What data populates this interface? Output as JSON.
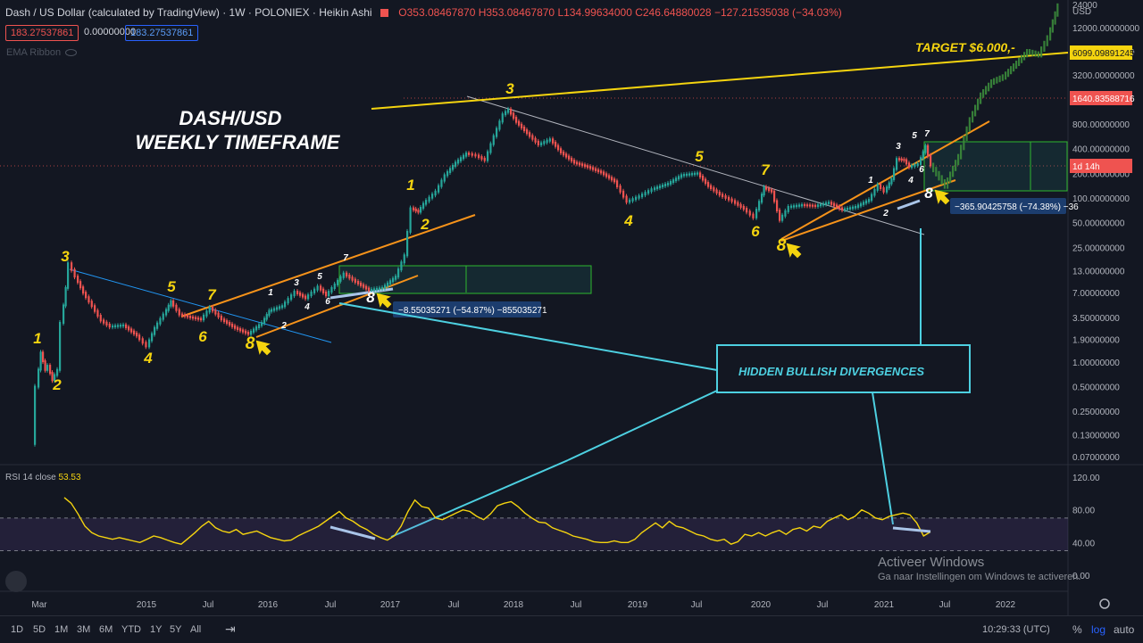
{
  "header": {
    "symbol": "Dash / US Dollar (calculated by TradingView) · 1W · POLONIEX · Heikin Ashi",
    "ohlc": "O353.08467870 H353.08467870 L134.99634000 C246.64880028 −127.21535038 (−34.03%)",
    "bid": "183.27537861",
    "spread": "0.00000000",
    "ask": "183.27537861",
    "ema_label": "EMA Ribbon"
  },
  "annotations": {
    "title_line1": "DASH/USD",
    "title_line2": "WEEKLY TIMEFRAME",
    "target": "TARGET $6.000,-",
    "divergence_box": "HIDDEN BULLISH DIVERGENCES",
    "measure1": "−8.55035271 (−54.87%) −855035271",
    "measure2": "−365.90425758 (−74.38%) −36"
  },
  "wave_labels": [
    {
      "t": "1",
      "p": [
        42,
        385
      ],
      "c": "#f5d40f",
      "s": 17
    },
    {
      "t": "2",
      "p": [
        64,
        437
      ],
      "c": "#f5d40f",
      "s": 17
    },
    {
      "t": "3",
      "p": [
        73,
        293
      ],
      "c": "#f5d40f",
      "s": 17
    },
    {
      "t": "4",
      "p": [
        166,
        407
      ],
      "c": "#f5d40f",
      "s": 17
    },
    {
      "t": "5",
      "p": [
        192,
        327
      ],
      "c": "#f5d40f",
      "s": 17
    },
    {
      "t": "6",
      "p": [
        227,
        383
      ],
      "c": "#f5d40f",
      "s": 17
    },
    {
      "t": "7",
      "p": [
        237,
        336
      ],
      "c": "#f5d40f",
      "s": 17
    },
    {
      "t": "8",
      "p": [
        280,
        391
      ],
      "c": "#f5d40f",
      "s": 19
    },
    {
      "t": "1",
      "p": [
        303,
        331
      ],
      "c": "#ffffff",
      "s": 10
    },
    {
      "t": "2",
      "p": [
        318,
        368
      ],
      "c": "#ffffff",
      "s": 10
    },
    {
      "t": "3",
      "p": [
        332,
        320
      ],
      "c": "#ffffff",
      "s": 10
    },
    {
      "t": "4",
      "p": [
        344,
        347
      ],
      "c": "#ffffff",
      "s": 10
    },
    {
      "t": "5",
      "p": [
        358,
        313
      ],
      "c": "#ffffff",
      "s": 10
    },
    {
      "t": "6",
      "p": [
        367,
        341
      ],
      "c": "#ffffff",
      "s": 10
    },
    {
      "t": "7",
      "p": [
        387,
        292
      ],
      "c": "#ffffff",
      "s": 10
    },
    {
      "t": "8",
      "p": [
        415,
        339
      ],
      "c": "#ffffff",
      "s": 17
    },
    {
      "t": "1",
      "p": [
        460,
        213
      ],
      "c": "#f5d40f",
      "s": 17
    },
    {
      "t": "2",
      "p": [
        476,
        257
      ],
      "c": "#f5d40f",
      "s": 17
    },
    {
      "t": "3",
      "p": [
        571,
        105
      ],
      "c": "#f5d40f",
      "s": 17
    },
    {
      "t": "4",
      "p": [
        704,
        253
      ],
      "c": "#f5d40f",
      "s": 17
    },
    {
      "t": "5",
      "p": [
        783,
        181
      ],
      "c": "#f5d40f",
      "s": 17
    },
    {
      "t": "6",
      "p": [
        846,
        265
      ],
      "c": "#f5d40f",
      "s": 17
    },
    {
      "t": "7",
      "p": [
        857,
        196
      ],
      "c": "#f5d40f",
      "s": 17
    },
    {
      "t": "8",
      "p": [
        875,
        281
      ],
      "c": "#f5d40f",
      "s": 19
    },
    {
      "t": "1",
      "p": [
        975,
        205
      ],
      "c": "#ffffff",
      "s": 10
    },
    {
      "t": "2",
      "p": [
        992,
        242
      ],
      "c": "#ffffff",
      "s": 10
    },
    {
      "t": "3",
      "p": [
        1006,
        167
      ],
      "c": "#ffffff",
      "s": 10
    },
    {
      "t": "4",
      "p": [
        1020,
        205
      ],
      "c": "#ffffff",
      "s": 10
    },
    {
      "t": "5",
      "p": [
        1024,
        155
      ],
      "c": "#ffffff",
      "s": 10
    },
    {
      "t": "6",
      "p": [
        1032,
        193
      ],
      "c": "#ffffff",
      "s": 10
    },
    {
      "t": "7",
      "p": [
        1038,
        153
      ],
      "c": "#ffffff",
      "s": 10
    },
    {
      "t": "8",
      "p": [
        1040,
        222
      ],
      "c": "#ffffff",
      "s": 17
    }
  ],
  "chart_data": {
    "type": "candlestick",
    "style": "Heikin Ashi",
    "interval": "1W",
    "exchange": "POLONIEX",
    "y_scale": "log",
    "ylim": [
      0.06,
      24000
    ],
    "y_ticks": [
      {
        "v": 24000,
        "label": "24000"
      },
      {
        "v": 12000,
        "label": "12000.00000000"
      },
      {
        "v": 6100,
        "label": "6100.00000000"
      },
      {
        "v": 3200,
        "label": "3200.00000000"
      },
      {
        "v": 800,
        "label": "800.00000000"
      },
      {
        "v": 400,
        "label": "400.00000000"
      },
      {
        "v": 200,
        "label": "200.00000000"
      },
      {
        "v": 100,
        "label": "100.00000000"
      },
      {
        "v": 50,
        "label": "50.00000000"
      },
      {
        "v": 25,
        "label": "25.00000000"
      },
      {
        "v": 13,
        "label": "13.00000000"
      },
      {
        "v": 7,
        "label": "7.00000000"
      },
      {
        "v": 3.5,
        "label": "3.50000000"
      },
      {
        "v": 1.9,
        "label": "1.90000000"
      },
      {
        "v": 1,
        "label": "1.00000000"
      },
      {
        "v": 0.5,
        "label": "0.50000000"
      },
      {
        "v": 0.25,
        "label": "0.25000000"
      },
      {
        "v": 0.13,
        "label": "0.13000000"
      },
      {
        "v": 0.07,
        "label": "0.07000000"
      }
    ],
    "currency": "USD",
    "x_ticks": [
      "Mar",
      "2015",
      "Jul",
      "2016",
      "Jul",
      "2017",
      "Jul",
      "2018",
      "Jul",
      "2019",
      "Jul",
      "2020",
      "Jul",
      "2021",
      "Jul",
      "2022"
    ],
    "price_marks": [
      {
        "v": 6099.09891245,
        "label": "6099.09891245",
        "kind": "target"
      },
      {
        "v": 1640.83588716,
        "label": "1640.83588716",
        "kind": "level"
      },
      {
        "v": 246.6,
        "label": "1d 14h",
        "kind": "countdown"
      }
    ],
    "path": [
      {
        "x": 38,
        "v": 0.1
      },
      {
        "x": 42,
        "v": 0.5
      },
      {
        "x": 47,
        "v": 1.3
      },
      {
        "x": 52,
        "v": 0.8
      },
      {
        "x": 55,
        "v": 0.9
      },
      {
        "x": 60,
        "v": 0.6
      },
      {
        "x": 66,
        "v": 0.8
      },
      {
        "x": 70,
        "v": 3
      },
      {
        "x": 75,
        "v": 8
      },
      {
        "x": 79,
        "v": 16
      },
      {
        "x": 86,
        "v": 11
      },
      {
        "x": 95,
        "v": 7
      },
      {
        "x": 105,
        "v": 4.8
      },
      {
        "x": 115,
        "v": 3.2
      },
      {
        "x": 125,
        "v": 2.7
      },
      {
        "x": 140,
        "v": 2.8
      },
      {
        "x": 155,
        "v": 2.1
      },
      {
        "x": 166,
        "v": 1.55
      },
      {
        "x": 175,
        "v": 2.6
      },
      {
        "x": 185,
        "v": 3.8
      },
      {
        "x": 193,
        "v": 5.5
      },
      {
        "x": 203,
        "v": 3.8
      },
      {
        "x": 215,
        "v": 3.5
      },
      {
        "x": 227,
        "v": 3.3
      },
      {
        "x": 237,
        "v": 4.6
      },
      {
        "x": 250,
        "v": 3.3
      },
      {
        "x": 265,
        "v": 2.6
      },
      {
        "x": 280,
        "v": 2.2
      },
      {
        "x": 295,
        "v": 3
      },
      {
        "x": 303,
        "v": 4.2
      },
      {
        "x": 318,
        "v": 4.8
      },
      {
        "x": 332,
        "v": 7.2
      },
      {
        "x": 344,
        "v": 6
      },
      {
        "x": 358,
        "v": 8.3
      },
      {
        "x": 367,
        "v": 6.5
      },
      {
        "x": 387,
        "v": 12
      },
      {
        "x": 400,
        "v": 9.5
      },
      {
        "x": 415,
        "v": 7.5
      },
      {
        "x": 430,
        "v": 8
      },
      {
        "x": 445,
        "v": 11
      },
      {
        "x": 455,
        "v": 20
      },
      {
        "x": 462,
        "v": 75
      },
      {
        "x": 470,
        "v": 68
      },
      {
        "x": 476,
        "v": 85
      },
      {
        "x": 490,
        "v": 120
      },
      {
        "x": 500,
        "v": 190
      },
      {
        "x": 512,
        "v": 270
      },
      {
        "x": 524,
        "v": 350
      },
      {
        "x": 535,
        "v": 330
      },
      {
        "x": 545,
        "v": 290
      },
      {
        "x": 555,
        "v": 570
      },
      {
        "x": 565,
        "v": 1050
      },
      {
        "x": 571,
        "v": 1200
      },
      {
        "x": 580,
        "v": 850
      },
      {
        "x": 592,
        "v": 620
      },
      {
        "x": 605,
        "v": 450
      },
      {
        "x": 618,
        "v": 520
      },
      {
        "x": 630,
        "v": 360
      },
      {
        "x": 645,
        "v": 270
      },
      {
        "x": 660,
        "v": 240
      },
      {
        "x": 675,
        "v": 205
      },
      {
        "x": 690,
        "v": 160
      },
      {
        "x": 704,
        "v": 90
      },
      {
        "x": 718,
        "v": 105
      },
      {
        "x": 732,
        "v": 128
      },
      {
        "x": 750,
        "v": 150
      },
      {
        "x": 765,
        "v": 190
      },
      {
        "x": 783,
        "v": 200
      },
      {
        "x": 795,
        "v": 140
      },
      {
        "x": 808,
        "v": 110
      },
      {
        "x": 822,
        "v": 92
      },
      {
        "x": 835,
        "v": 74
      },
      {
        "x": 846,
        "v": 58
      },
      {
        "x": 852,
        "v": 90
      },
      {
        "x": 857,
        "v": 135
      },
      {
        "x": 866,
        "v": 120
      },
      {
        "x": 875,
        "v": 54
      },
      {
        "x": 885,
        "v": 78
      },
      {
        "x": 900,
        "v": 82
      },
      {
        "x": 915,
        "v": 80
      },
      {
        "x": 930,
        "v": 88
      },
      {
        "x": 945,
        "v": 72
      },
      {
        "x": 960,
        "v": 78
      },
      {
        "x": 975,
        "v": 95
      },
      {
        "x": 985,
        "v": 145
      },
      {
        "x": 992,
        "v": 120
      },
      {
        "x": 1000,
        "v": 170
      },
      {
        "x": 1006,
        "v": 300
      },
      {
        "x": 1014,
        "v": 290
      },
      {
        "x": 1020,
        "v": 240
      },
      {
        "x": 1030,
        "v": 260
      },
      {
        "x": 1038,
        "v": 430
      },
      {
        "x": 1044,
        "v": 250
      }
    ],
    "projection": [
      {
        "x": 1044,
        "v": 250
      },
      {
        "x": 1060,
        "v": 140
      },
      {
        "x": 1075,
        "v": 320
      },
      {
        "x": 1088,
        "v": 900
      },
      {
        "x": 1100,
        "v": 1800
      },
      {
        "x": 1112,
        "v": 2600
      },
      {
        "x": 1125,
        "v": 3000
      },
      {
        "x": 1140,
        "v": 4400
      },
      {
        "x": 1152,
        "v": 6100
      },
      {
        "x": 1165,
        "v": 5600
      },
      {
        "x": 1175,
        "v": 9000
      },
      {
        "x": 1186,
        "v": 22000
      }
    ],
    "rsi": {
      "label": "RSI 14 close",
      "value": "53.53",
      "ylim": [
        0,
        120
      ],
      "bands": [
        70,
        30
      ],
      "y_ticks": [
        {
          "v": 120,
          "label": "120.00"
        },
        {
          "v": 80,
          "label": "80.00"
        },
        {
          "v": 40,
          "label": "40.00"
        },
        {
          "v": 0,
          "label": "0.00"
        }
      ],
      "values": [
        95,
        88,
        75,
        60,
        52,
        48,
        46,
        44,
        46,
        44,
        42,
        40,
        44,
        48,
        46,
        43,
        40,
        38,
        45,
        52,
        60,
        66,
        58,
        54,
        52,
        56,
        50,
        52,
        54,
        50,
        46,
        44,
        42,
        43,
        48,
        52,
        56,
        60,
        66,
        72,
        78,
        70,
        66,
        60,
        56,
        50,
        46,
        43,
        48,
        60,
        78,
        92,
        84,
        82,
        70,
        68,
        72,
        76,
        80,
        78,
        72,
        68,
        75,
        85,
        88,
        90,
        84,
        76,
        70,
        65,
        64,
        58,
        55,
        52,
        48,
        46,
        44,
        41,
        40,
        40,
        42,
        40,
        40,
        44,
        52,
        58,
        64,
        58,
        66,
        60,
        58,
        54,
        50,
        48,
        44,
        42,
        44,
        38,
        41,
        50,
        48,
        52,
        48,
        52,
        55,
        50,
        56,
        58,
        54,
        60,
        58,
        66,
        70,
        74,
        68,
        72,
        80,
        76,
        70,
        68,
        72,
        74,
        76,
        74,
        64,
        48,
        53
      ]
    }
  },
  "bottom_bar": {
    "timeframes": [
      "1D",
      "5D",
      "1M",
      "3M",
      "6M",
      "YTD",
      "1Y",
      "5Y",
      "All"
    ],
    "clock": "10:29:33 (UTC)",
    "pct": "%",
    "log": "log",
    "auto": "auto"
  },
  "watermark": {
    "line1": "Activeer Windows",
    "line2": "Ga naar Instellingen om Windows te activeren."
  }
}
